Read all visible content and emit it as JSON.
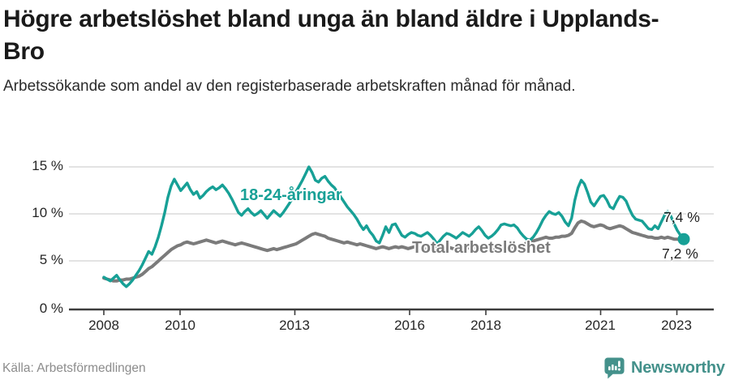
{
  "header": {
    "title": "Högre arbetslöshet bland unga än bland äldre i Upplands-Bro",
    "subtitle": "Arbetssökande som andel av den registerbaserade arbetskraften månad för månad."
  },
  "footer": {
    "source": "Källa: Arbetsförmedlingen",
    "logo_text": "Newsworthy",
    "logo_color": "#44918b"
  },
  "chart_data": {
    "type": "line",
    "title": "Högre arbetslöshet bland unga än bland äldre i Upplands-Bro",
    "x_start": "2008-01",
    "x_end": "2023-02",
    "x_tick_labels": [
      "2008",
      "2010",
      "2013",
      "2016",
      "2018",
      "2021",
      "2023"
    ],
    "y_tick_labels": [
      "0 %",
      "5 %",
      "10 %",
      "15 %"
    ],
    "ylim": [
      0,
      16.5
    ],
    "unit": "%",
    "grid": "horizontal",
    "legend_position": "inline-labels",
    "series": [
      {
        "name": "18-24-åringar",
        "color": "#17a096",
        "end_label": "7,4 %",
        "end_value": 7.4,
        "values": [
          3.4,
          3.2,
          3.0,
          3.3,
          3.6,
          3.1,
          2.7,
          2.4,
          2.7,
          3.1,
          3.6,
          4.1,
          4.7,
          5.4,
          6.1,
          5.8,
          6.6,
          7.6,
          8.8,
          10.2,
          11.8,
          13.0,
          13.7,
          13.1,
          12.5,
          12.9,
          13.3,
          12.6,
          12.1,
          12.4,
          11.7,
          12.0,
          12.4,
          12.7,
          12.9,
          12.6,
          12.8,
          13.1,
          12.7,
          12.2,
          11.6,
          10.9,
          10.2,
          9.9,
          10.3,
          10.6,
          10.2,
          9.9,
          10.1,
          10.4,
          10.0,
          9.6,
          10.0,
          10.4,
          10.1,
          9.8,
          10.2,
          10.7,
          11.2,
          11.8,
          12.4,
          13.0,
          13.6,
          14.3,
          15.0,
          14.4,
          13.6,
          13.4,
          13.8,
          14.0,
          13.5,
          13.1,
          12.8,
          12.3,
          11.8,
          11.3,
          10.8,
          10.4,
          10.0,
          9.5,
          8.9,
          8.4,
          8.8,
          8.2,
          7.8,
          7.2,
          7.0,
          7.8,
          8.7,
          8.1,
          8.9,
          9.0,
          8.4,
          7.8,
          7.6,
          7.9,
          8.1,
          8.0,
          7.8,
          7.7,
          7.9,
          8.1,
          7.8,
          7.4,
          6.9,
          7.3,
          7.7,
          8.0,
          7.9,
          7.7,
          7.5,
          7.8,
          8.1,
          7.9,
          7.7,
          8.0,
          8.4,
          8.7,
          8.3,
          7.8,
          7.5,
          7.7,
          8.0,
          8.4,
          8.9,
          9.0,
          8.9,
          8.8,
          8.9,
          8.6,
          8.1,
          7.7,
          7.4,
          7.3,
          7.6,
          8.1,
          8.7,
          9.4,
          9.9,
          10.3,
          10.1,
          10.0,
          10.2,
          9.8,
          9.2,
          8.8,
          9.6,
          11.5,
          12.8,
          13.6,
          13.2,
          12.3,
          11.3,
          10.9,
          11.4,
          11.9,
          12.0,
          11.5,
          10.8,
          10.6,
          11.3,
          11.9,
          11.8,
          11.4,
          10.6,
          9.9,
          9.5,
          9.4,
          9.3,
          8.9,
          8.5,
          8.4,
          8.8,
          8.5,
          9.2,
          9.9,
          10.3,
          9.8,
          9.0,
          8.3,
          7.8,
          7.4
        ]
      },
      {
        "name": "Total arbetslöshet",
        "color": "#7b7b7b",
        "end_label": "7,2 %",
        "end_value": 7.2,
        "values": [
          3.3,
          3.2,
          3.1,
          3.0,
          3.0,
          3.1,
          3.1,
          3.2,
          3.2,
          3.3,
          3.4,
          3.5,
          3.7,
          4.0,
          4.3,
          4.5,
          4.8,
          5.1,
          5.4,
          5.7,
          6.0,
          6.3,
          6.5,
          6.7,
          6.8,
          7.0,
          7.1,
          7.0,
          6.9,
          7.0,
          7.1,
          7.2,
          7.3,
          7.2,
          7.1,
          7.0,
          7.1,
          7.2,
          7.1,
          7.0,
          6.9,
          6.8,
          6.9,
          7.0,
          6.9,
          6.8,
          6.7,
          6.6,
          6.5,
          6.4,
          6.3,
          6.2,
          6.3,
          6.4,
          6.3,
          6.4,
          6.5,
          6.6,
          6.7,
          6.8,
          6.9,
          7.1,
          7.3,
          7.5,
          7.7,
          7.9,
          8.0,
          7.9,
          7.8,
          7.7,
          7.5,
          7.4,
          7.3,
          7.2,
          7.1,
          7.0,
          7.1,
          7.0,
          6.9,
          6.8,
          6.9,
          6.8,
          6.7,
          6.6,
          6.5,
          6.4,
          6.5,
          6.6,
          6.5,
          6.4,
          6.5,
          6.6,
          6.5,
          6.6,
          6.5,
          6.4,
          6.5,
          6.6,
          6.5,
          6.4,
          6.3,
          6.4,
          6.5,
          6.6,
          6.5,
          6.4,
          6.3,
          6.4,
          6.5,
          6.4,
          6.3,
          6.2,
          6.3,
          6.4,
          6.5,
          6.4,
          6.5,
          6.6,
          6.5,
          6.4,
          6.3,
          6.2,
          6.3,
          6.4,
          6.5,
          6.6,
          6.7,
          6.6,
          6.5,
          6.6,
          6.7,
          6.8,
          7.0,
          7.1,
          7.2,
          7.3,
          7.4,
          7.5,
          7.6,
          7.5,
          7.5,
          7.6,
          7.6,
          7.7,
          7.7,
          7.8,
          8.0,
          8.6,
          9.1,
          9.3,
          9.2,
          9.0,
          8.8,
          8.7,
          8.8,
          8.9,
          8.8,
          8.6,
          8.5,
          8.6,
          8.7,
          8.8,
          8.7,
          8.5,
          8.3,
          8.1,
          8.0,
          7.9,
          7.8,
          7.7,
          7.6,
          7.6,
          7.5,
          7.5,
          7.6,
          7.5,
          7.6,
          7.5,
          7.4,
          7.4,
          7.3,
          7.2
        ]
      }
    ]
  }
}
